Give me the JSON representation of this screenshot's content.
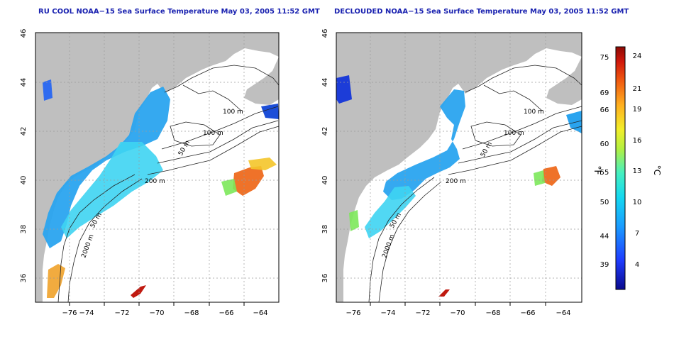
{
  "panels": [
    {
      "title": "RU COOL NOAA−15 Sea Surface Temperature May 03, 2005 11:52 GMT",
      "contour_labels": [
        "100 m",
        "100 m",
        "50 m",
        "200 m",
        "50 m",
        "2000 m"
      ]
    },
    {
      "title": "DECLOUDED NOAA−15 Sea Surface Temperature May 03, 2005 11:52 GMT",
      "contour_labels": [
        "100 m",
        "100 m",
        "50 m",
        "200 m",
        "50 m",
        "2000 m"
      ]
    }
  ],
  "axes": {
    "lon_ticks": [
      "−76",
      "−74",
      "−72",
      "−70",
      "−68",
      "−66",
      "−64"
    ],
    "lat_ticks": [
      "36",
      "38",
      "40",
      "42",
      "44",
      "46"
    ]
  },
  "colorbar": {
    "f_label": "°F",
    "c_label": "°C",
    "f_ticks": [
      "75",
      "69",
      "66",
      "60",
      "55",
      "50",
      "44",
      "39"
    ],
    "c_ticks": [
      "24",
      "21",
      "19",
      "16",
      "13",
      "10",
      "7",
      "4"
    ]
  },
  "colors": {
    "land": "#bfbfbf",
    "title": "#1a22b0",
    "contour": "#222222",
    "grid": "#9a9a9a"
  }
}
